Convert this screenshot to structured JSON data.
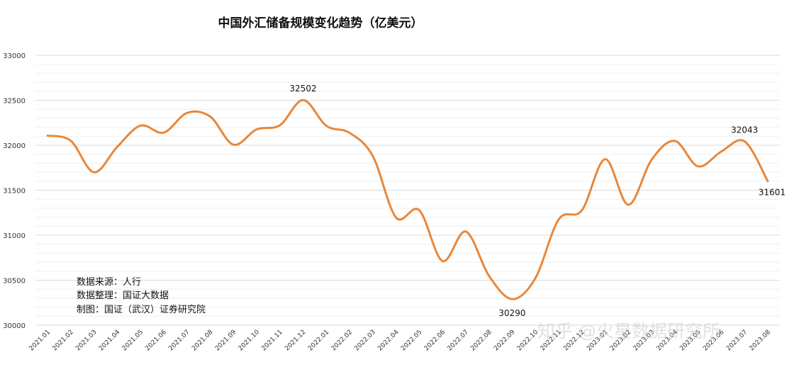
{
  "chart_data": {
    "type": "line",
    "title": "中国外汇储备规模变化趋势（亿美元）",
    "categories": [
      "2021.01",
      "2021.02",
      "2021.03",
      "2021.04",
      "2021.05",
      "2021.06",
      "2021.07",
      "2021.08",
      "2021.09",
      "2021.10",
      "2021.11",
      "2021.12",
      "2022.01",
      "2022.02",
      "2022.03",
      "2022.04",
      "2022.05",
      "2022.06",
      "2022.07",
      "2022.08",
      "2022.09",
      "2022.10",
      "2022.11",
      "2022.12",
      "2023.01",
      "2023.02",
      "2023.03",
      "2023.04",
      "2023.05",
      "2023.06",
      "2023.07",
      "2023.08"
    ],
    "series": [
      {
        "color": "#e8873a",
        "values": [
          32107,
          32050,
          31700,
          31982,
          32218,
          32140,
          32359,
          32320,
          32006,
          32176,
          32222,
          32502,
          32216,
          32138,
          31880,
          31197,
          31278,
          30713,
          31041,
          30549,
          30290,
          30524,
          31175,
          31277,
          31845,
          31339,
          31839,
          32048,
          31765,
          31930,
          32043,
          31601
        ]
      }
    ],
    "ylim": [
      30000,
      33000
    ],
    "yticks": [
      30000,
      30500,
      31000,
      31500,
      32000,
      32500,
      33000
    ],
    "grid": true,
    "legend": "none",
    "annotations": [
      {
        "index": 11,
        "text": "32502"
      },
      {
        "index": 20,
        "text": "30290"
      },
      {
        "index": 30,
        "text": "32043"
      },
      {
        "index": 31,
        "text": "31601"
      }
    ]
  },
  "notes": {
    "source": "数据来源：人行",
    "compiled": "数据整理：国证大数据",
    "made_by": "制图：国证（武汉）证券研究院"
  },
  "watermark": "知乎 @火星数据研究所"
}
